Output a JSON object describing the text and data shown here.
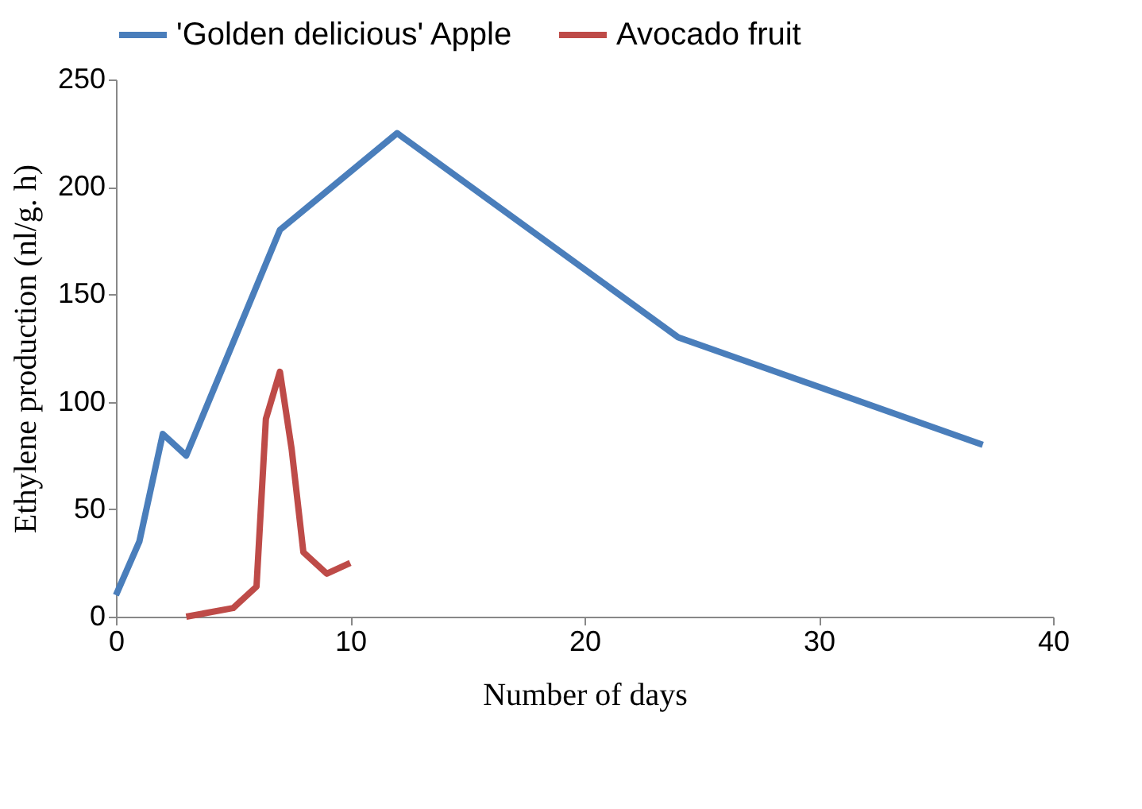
{
  "chart_data": {
    "type": "line",
    "xlabel": "Number of days",
    "ylabel": "Ethylene production (nl/g. h)",
    "xlim": [
      0,
      40
    ],
    "xticks": [
      0,
      10,
      20,
      30,
      40
    ],
    "ylim": [
      0,
      250
    ],
    "yticks": [
      0,
      50,
      100,
      150,
      200,
      250
    ],
    "grid": false,
    "legend": "top",
    "marker": "none",
    "line_style": "solid",
    "series": [
      {
        "name": "'Golden delicious' Apple",
        "color": "#4a7ebb",
        "x": [
          0,
          1,
          2,
          3,
          7,
          12,
          24,
          37
        ],
        "values": [
          10,
          35,
          85,
          75,
          180,
          225,
          130,
          80
        ]
      },
      {
        "name": "Avocado fruit",
        "color": "#be4b48",
        "x": [
          3,
          5,
          6,
          6.4,
          7,
          7.5,
          8,
          9,
          10
        ],
        "values": [
          0,
          4,
          14,
          92,
          114,
          78,
          30,
          20,
          25
        ]
      }
    ]
  }
}
